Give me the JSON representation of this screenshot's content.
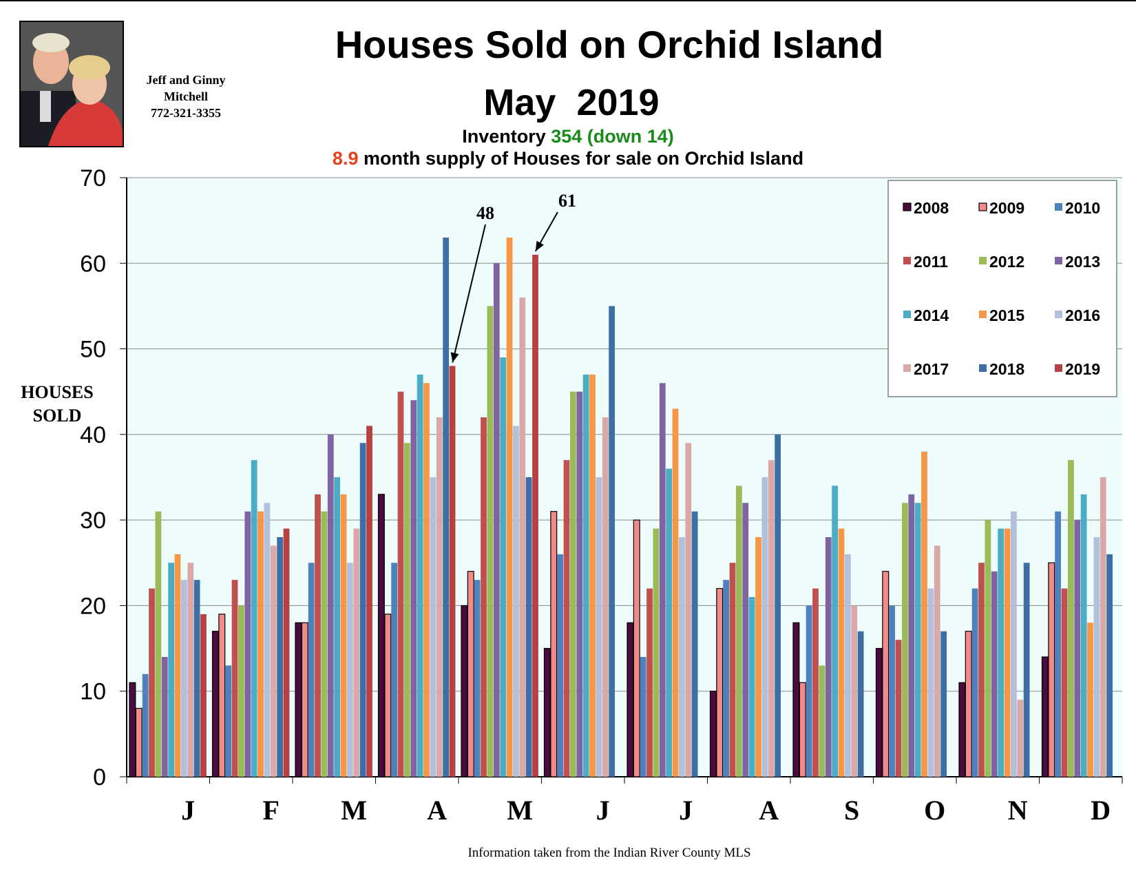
{
  "agent": {
    "line1": "Jeff and Ginny",
    "line2": "Mitchell",
    "phone": "772-321-3355"
  },
  "header": {
    "title": "Houses Sold on Orchid Island",
    "subtitle": "May  2019",
    "inventory_label": "Inventory",
    "inventory_value": "354 (down 14)",
    "supply_value": "8.9",
    "supply_text": "month supply of Houses for sale on Orchid Island"
  },
  "footer": {
    "source": "Information taken from the Indian River County MLS"
  },
  "chart_data": {
    "type": "bar",
    "title": "Houses Sold on Orchid Island",
    "ylabel": "HOUSES SOLD",
    "ylabel_lines": [
      "HOUSES",
      "SOLD"
    ],
    "ylim": [
      0,
      70
    ],
    "yticks": [
      0,
      10,
      20,
      30,
      40,
      50,
      60,
      70
    ],
    "grid": true,
    "legend_position": "top-right",
    "categories": [
      "J",
      "F",
      "M",
      "A",
      "M",
      "J",
      "J",
      "A",
      "S",
      "O",
      "N",
      "D"
    ],
    "series": [
      {
        "name": "2008",
        "color": "#4a0c3e",
        "values": [
          11,
          17,
          18,
          33,
          20,
          15,
          18,
          10,
          18,
          15,
          11,
          14
        ]
      },
      {
        "name": "2009",
        "color": "#f28a8a",
        "values": [
          8,
          19,
          18,
          19,
          24,
          31,
          30,
          22,
          11,
          24,
          17,
          25
        ]
      },
      {
        "name": "2010",
        "color": "#4f81bd",
        "values": [
          12,
          13,
          25,
          25,
          23,
          26,
          14,
          23,
          20,
          20,
          22,
          31
        ]
      },
      {
        "name": "2011",
        "color": "#c0504d",
        "values": [
          22,
          23,
          33,
          45,
          42,
          37,
          22,
          25,
          22,
          16,
          25,
          22
        ]
      },
      {
        "name": "2012",
        "color": "#9bbb59",
        "values": [
          31,
          20,
          31,
          39,
          55,
          45,
          29,
          34,
          13,
          32,
          30,
          37
        ]
      },
      {
        "name": "2013",
        "color": "#8064a2",
        "values": [
          14,
          31,
          40,
          44,
          60,
          45,
          46,
          32,
          28,
          33,
          24,
          30
        ]
      },
      {
        "name": "2014",
        "color": "#4bacc6",
        "values": [
          25,
          37,
          35,
          47,
          49,
          47,
          36,
          21,
          34,
          32,
          29,
          33
        ]
      },
      {
        "name": "2015",
        "color": "#f79646",
        "values": [
          26,
          31,
          33,
          46,
          63,
          47,
          43,
          28,
          29,
          38,
          29,
          18
        ]
      },
      {
        "name": "2016",
        "color": "#b3c0dc",
        "values": [
          23,
          32,
          25,
          35,
          41,
          35,
          28,
          35,
          26,
          22,
          31,
          28
        ]
      },
      {
        "name": "2017",
        "color": "#dba8a8",
        "values": [
          25,
          27,
          29,
          42,
          56,
          42,
          39,
          37,
          20,
          27,
          9,
          35
        ]
      },
      {
        "name": "2018",
        "color": "#3d6fa5",
        "values": [
          23,
          28,
          39,
          63,
          35,
          55,
          31,
          40,
          17,
          17,
          25,
          26
        ]
      },
      {
        "name": "2019",
        "color": "#b94040",
        "values": [
          19,
          29,
          41,
          48,
          61,
          null,
          null,
          null,
          null,
          null,
          null,
          null
        ]
      }
    ],
    "annotations": [
      {
        "text": "48",
        "series": "2019",
        "category_index": 3,
        "value": 48
      },
      {
        "text": "61",
        "series": "2019",
        "category_index": 4,
        "value": 61
      }
    ]
  }
}
